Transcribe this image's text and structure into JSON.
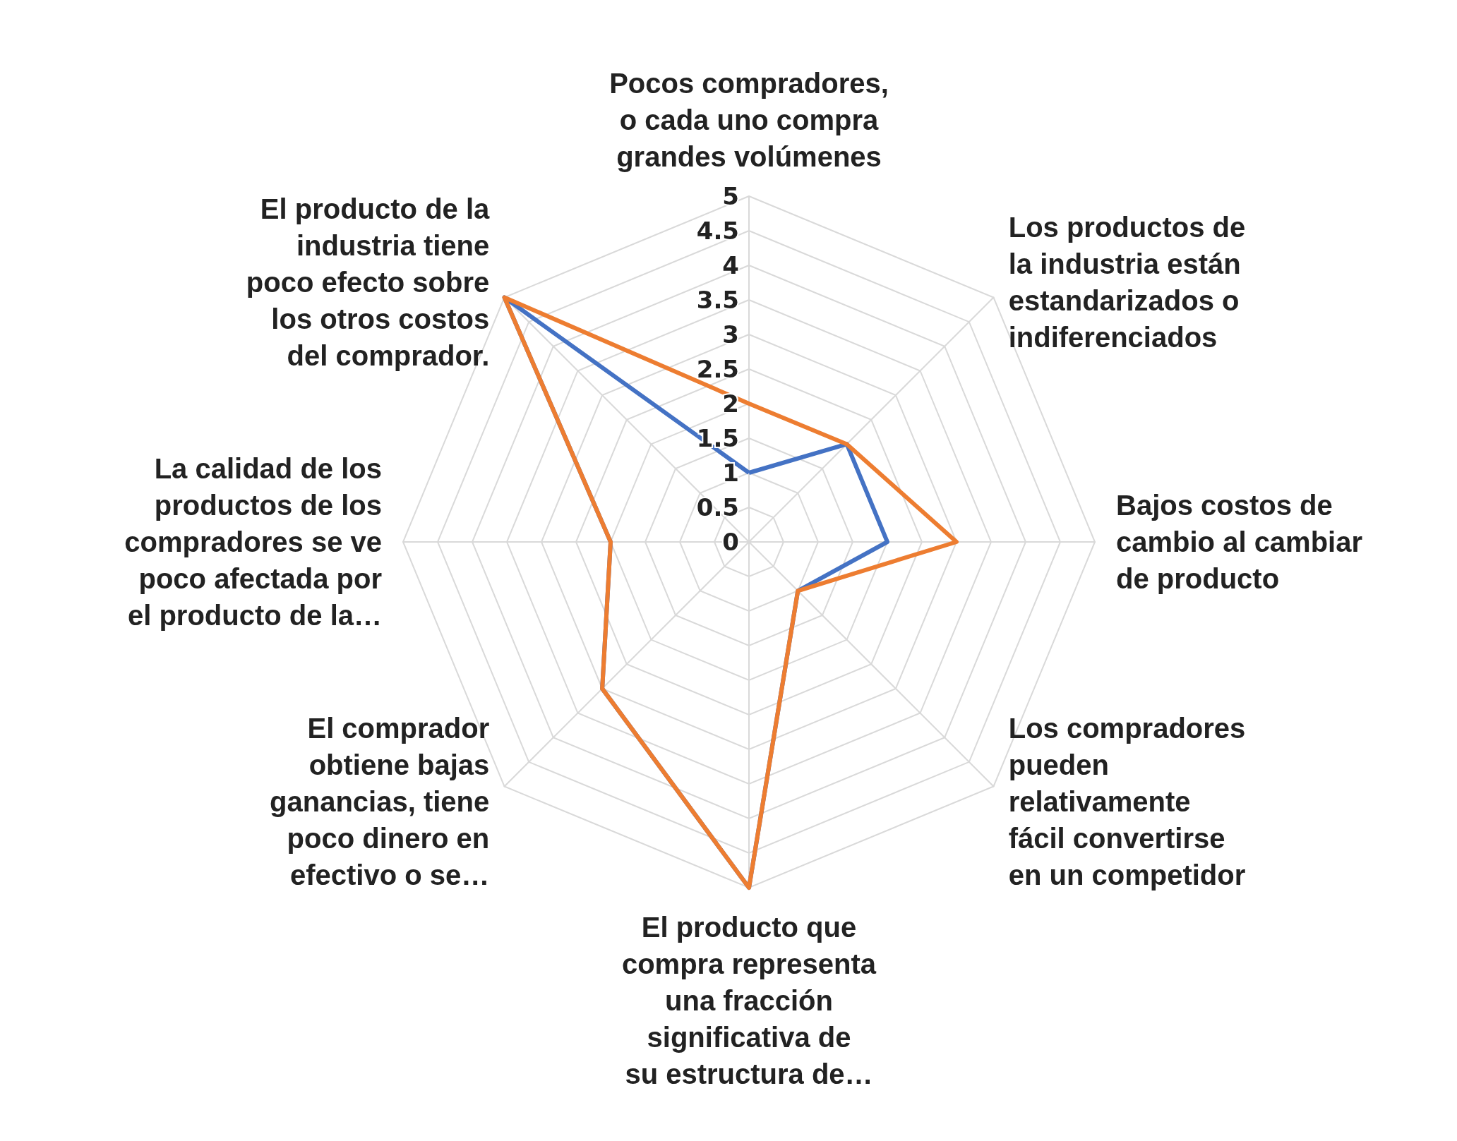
{
  "chart_data": {
    "type": "radar",
    "categories": [
      "Pocos compradores, o cada uno compra grandes volúmenes",
      "Los productos de la industria están estandarizados o indiferenciados",
      "Bajos costos de cambio al cambiar de producto",
      "Los compradores pueden relativamente fácil convertirse en un competidor",
      "El producto que compra representa una fracción significativa de su estructura de…",
      "El comprador obtiene bajas ganancias, tiene poco dinero en efectivo o se…",
      "La calidad de los productos de los compradores se ve poco afectada por el producto de la…",
      "El producto de la industria tiene poco efecto sobre los otros costos del comprador."
    ],
    "series": [
      {
        "color": "#4472c4",
        "values": [
          1,
          2,
          2,
          1,
          5,
          3,
          2,
          5
        ]
      },
      {
        "color": "#ed7d31",
        "values": [
          2,
          2,
          3,
          1,
          5,
          3,
          2,
          5
        ]
      }
    ],
    "ylim": [
      0,
      5
    ],
    "yticks": [
      0,
      0.5,
      1,
      1.5,
      2,
      2.5,
      3,
      3.5,
      4,
      4.5,
      5
    ],
    "grid": true,
    "marker": "none",
    "line_style": "solid"
  }
}
